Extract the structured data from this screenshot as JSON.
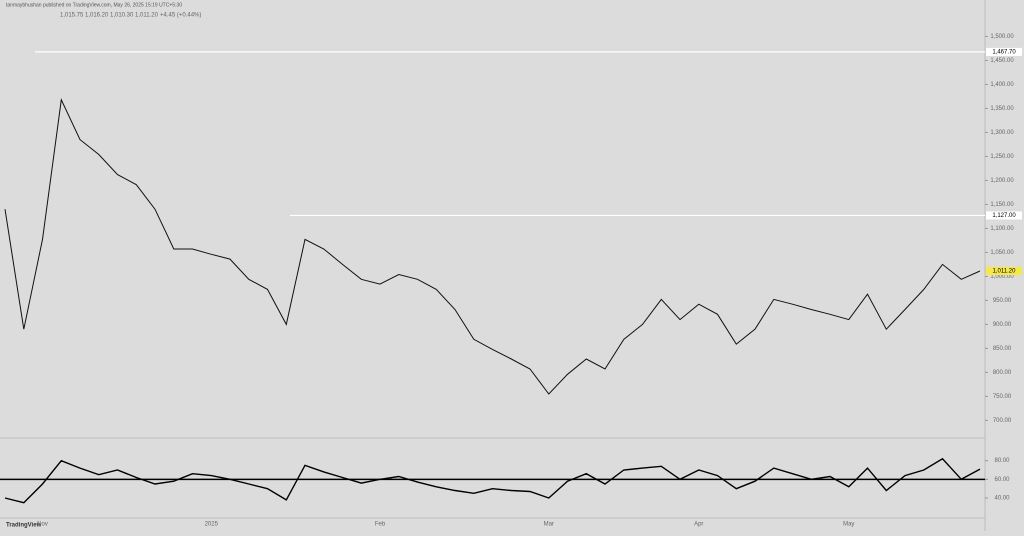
{
  "header": {
    "byline": "tanmaybhushan published on TradingView.com, May 26, 2025 15:19 UTC+5:30",
    "ohlc": [
      "1,015.75",
      "1,016.20",
      "1,010.30",
      "1,011.20",
      "+4.45 (+0.44%)"
    ],
    "brand": "TradingView"
  },
  "chart_data": [
    {
      "type": "line",
      "color": "#111111",
      "categories": [
        null,
        null,
        "Nov",
        null,
        null,
        null,
        null,
        null,
        null,
        null,
        null,
        "2025",
        null,
        null,
        null,
        null,
        null,
        null,
        null,
        null,
        "Feb",
        null,
        null,
        null,
        null,
        null,
        null,
        null,
        null,
        "Mar",
        null,
        null,
        null,
        null,
        null,
        null,
        null,
        "Apr",
        null,
        null,
        null,
        null,
        null,
        null,
        null,
        "May",
        null,
        null,
        null,
        null,
        null,
        null,
        null
      ],
      "values": [
        1140,
        890,
        1077,
        1368,
        1285,
        1254,
        1212,
        1191,
        1140,
        1057,
        1057,
        1046,
        1036,
        994,
        973,
        900,
        1077,
        1057,
        1025,
        994,
        984,
        1004,
        994,
        973,
        931,
        869,
        848,
        828,
        807,
        755,
        796,
        828,
        807,
        869,
        900,
        952,
        910,
        942,
        921,
        859,
        890,
        952,
        942,
        931,
        921,
        910,
        963,
        890,
        931,
        973,
        1025,
        994,
        1011.2
      ],
      "ylim": [
        680,
        1555
      ],
      "yticks": [
        {
          "value": 700,
          "label": "700.00"
        },
        {
          "value": 750,
          "label": "750.00"
        },
        {
          "value": 800,
          "label": "800.00"
        },
        {
          "value": 850,
          "label": "850.00"
        },
        {
          "value": 900,
          "label": "900.00"
        },
        {
          "value": 950,
          "label": "950.00"
        },
        {
          "value": 1000,
          "label": "1,000.00"
        },
        {
          "value": 1050,
          "label": "1,050.00"
        },
        {
          "value": 1100,
          "label": "1,100.00"
        },
        {
          "value": 1150,
          "label": "1,150.00"
        },
        {
          "value": 1200,
          "label": "1,200.00"
        },
        {
          "value": 1250,
          "label": "1,250.00"
        },
        {
          "value": 1300,
          "label": "1,300.00"
        },
        {
          "value": 1350,
          "label": "1,350.00"
        },
        {
          "value": 1400,
          "label": "1,400.00"
        },
        {
          "value": 1450,
          "label": "1,450.00"
        },
        {
          "value": 1500,
          "label": "1,500.00"
        }
      ],
      "levels": [
        {
          "value": 1467.7,
          "label": "1,467.70"
        },
        {
          "value": 1127,
          "label": "1,127.00"
        },
        {
          "value": 1011.2,
          "label": "1,011.20"
        }
      ]
    },
    {
      "type": "line",
      "color": "#000000",
      "values": [
        40,
        35,
        55,
        80,
        72,
        65,
        70,
        62,
        55,
        58,
        66,
        64,
        60,
        55,
        50,
        38,
        75,
        68,
        62,
        56,
        60,
        63,
        57,
        52,
        48,
        45,
        50,
        48,
        47,
        40,
        58,
        66,
        55,
        70,
        72,
        74,
        60,
        70,
        64,
        50,
        58,
        72,
        66,
        60,
        63,
        52,
        72,
        48,
        64,
        70,
        82,
        60,
        71
      ],
      "ylim": [
        25,
        100
      ],
      "yticks": [
        {
          "value": 40,
          "label": "40.00"
        },
        {
          "value": 60,
          "label": "60.00"
        },
        {
          "value": 80,
          "label": "80.00"
        }
      ]
    }
  ]
}
